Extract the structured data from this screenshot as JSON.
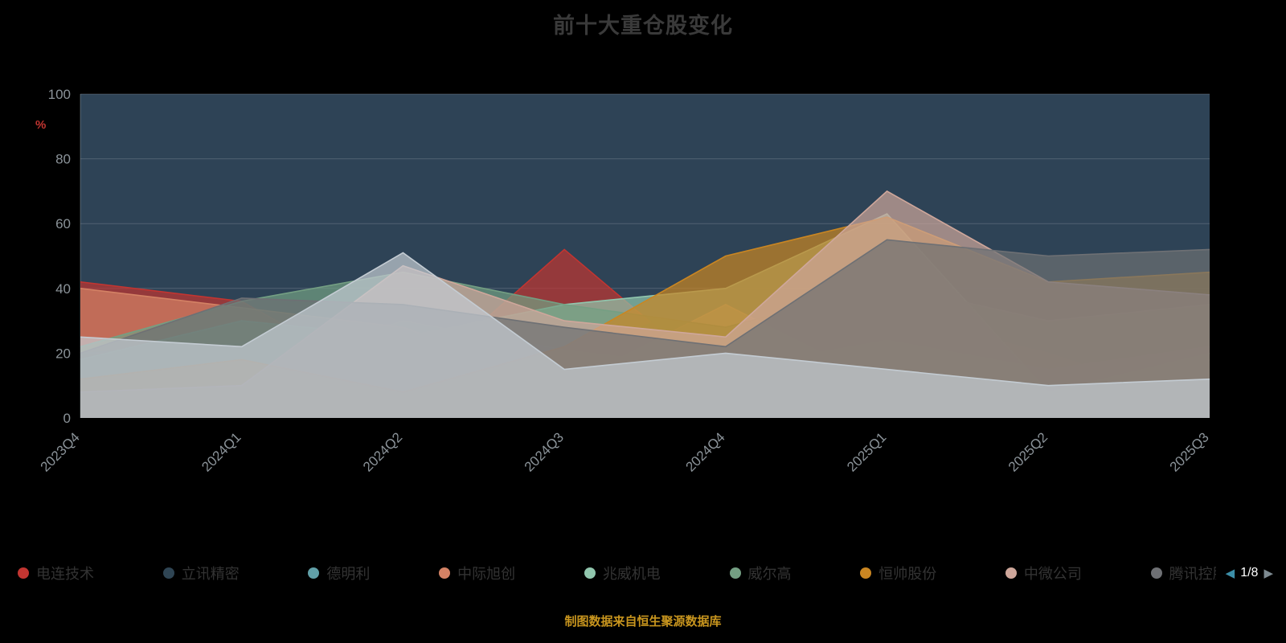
{
  "title": "前十大重仓股变化",
  "caption": "制图数据来自恒生聚源数据库",
  "legend_pager": {
    "current": "1/8",
    "prev_icon": "left-triangle",
    "next_icon": "right-triangle"
  },
  "theme": {
    "background": "#000000",
    "plot_bg": "#2e4356",
    "grid_line": "#9aa6ad",
    "axis_label": "#8b9399",
    "title_color": "#3a3a3a",
    "legend_label": "#333333",
    "ylabel_color": "#c23531",
    "caption_color": "#c8951e",
    "pager_prev": "#3c8ea8",
    "pager_next": "#7d8a91",
    "pager_label": "#ffffff"
  },
  "chart_data": {
    "type": "area",
    "stacked": false,
    "title": "前十大重仓股变化",
    "xlabel": "",
    "ylabel": "%",
    "ylim": [
      0,
      100
    ],
    "yticks": [
      0,
      20,
      40,
      60,
      80,
      100
    ],
    "grid": true,
    "legend_position": "bottom",
    "categories": [
      "2023Q4",
      "2024Q1",
      "2024Q2",
      "2024Q3",
      "2024Q4",
      "2025Q1",
      "2025Q2",
      "2025Q3"
    ],
    "series": [
      {
        "name": "电连技术",
        "color": "#c23531",
        "values": [
          42,
          36,
          8,
          52,
          10,
          32,
          20,
          3
        ]
      },
      {
        "name": "立讯精密",
        "color": "#2f4554",
        "values": [
          20,
          23,
          38,
          17,
          40,
          56,
          42,
          46
        ]
      },
      {
        "name": "德明利",
        "color": "#61a0a8",
        "values": [
          10,
          13,
          30,
          21,
          15,
          24,
          15,
          22
        ]
      },
      {
        "name": "中际旭创",
        "color": "#d48265",
        "values": [
          40,
          34,
          28,
          10,
          35,
          10,
          8,
          18
        ]
      },
      {
        "name": "兆威机电",
        "color": "#91c7ae",
        "values": [
          18,
          30,
          25,
          35,
          40,
          63,
          8,
          20
        ]
      },
      {
        "name": "威尔高",
        "color": "#749f83",
        "values": [
          22,
          36,
          45,
          35,
          28,
          41,
          30,
          35
        ]
      },
      {
        "name": "恒帅股份",
        "color": "#ca8622",
        "values": [
          12,
          18,
          8,
          22,
          50,
          62,
          42,
          45
        ]
      },
      {
        "name": "中微公司",
        "color": "#cfa79b",
        "values": [
          8,
          10,
          47,
          30,
          25,
          70,
          42,
          38
        ]
      },
      {
        "name": "腾讯控股",
        "color": "#6e7074",
        "values": [
          20,
          37,
          35,
          28,
          22,
          55,
          50,
          52
        ]
      },
      {
        "name": "",
        "color": "#c4ccd3",
        "values": [
          25,
          22,
          51,
          15,
          20,
          15,
          10,
          12
        ]
      }
    ]
  }
}
